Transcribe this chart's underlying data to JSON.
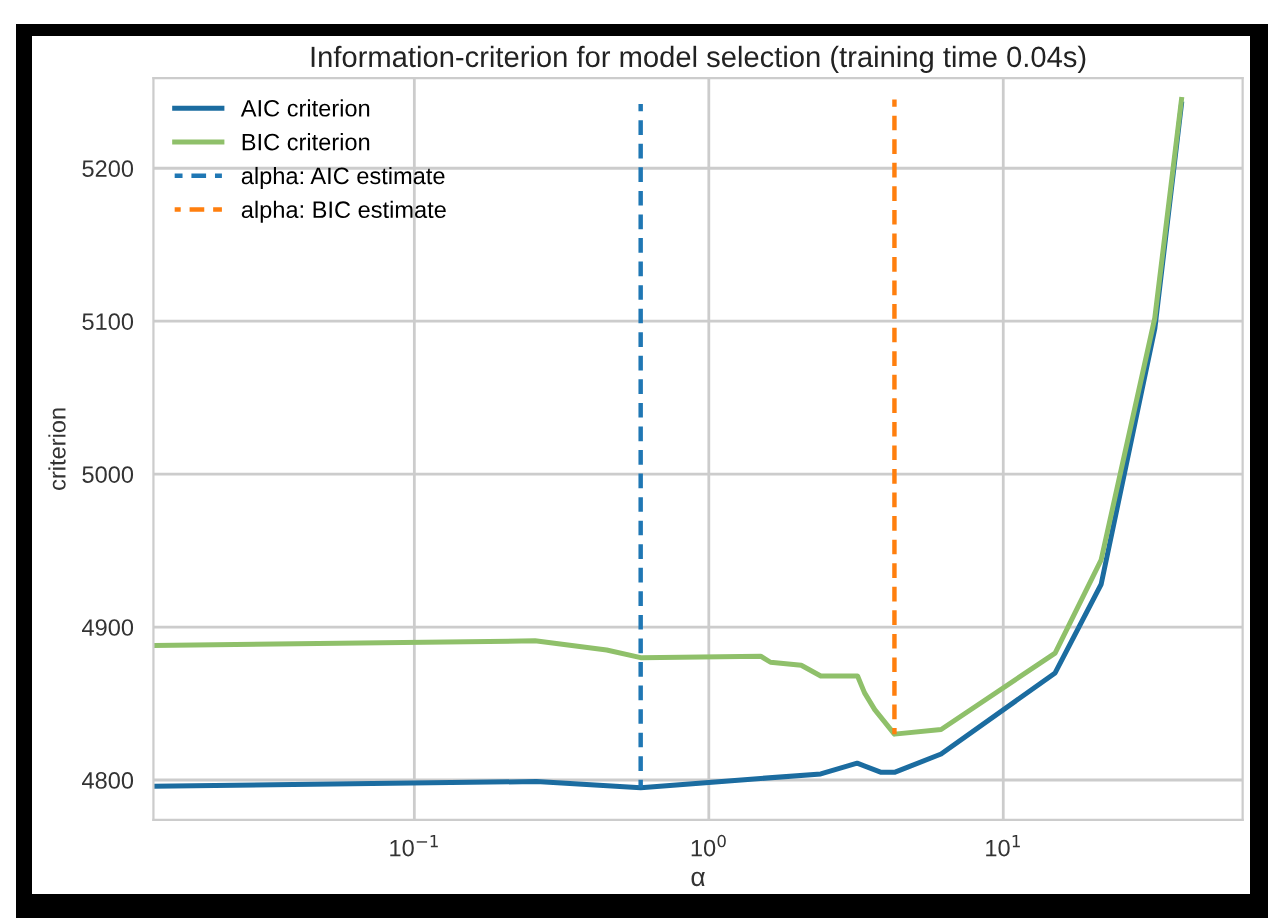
{
  "chart_data": {
    "type": "line",
    "title": "Information-criterion for model selection (training time 0.04s)",
    "xlabel": "α",
    "ylabel": "criterion",
    "log": "x",
    "grid": true,
    "legend": "top left",
    "marker": "none",
    "xlim": [
      0.013,
      65
    ],
    "ylim": [
      4774,
      5259
    ],
    "xticks": [
      {
        "value": 0.1,
        "label": "10$^{−1}$"
      },
      {
        "value": 1,
        "label": "10$^{0}$"
      },
      {
        "value": 10,
        "label": "10$^{1}$"
      }
    ],
    "yticks": [
      4800,
      4900,
      5000,
      5100,
      5200
    ],
    "series": [
      {
        "name": "AIC criterion",
        "color": "#1b6ca0",
        "line_style": "solid",
        "x": [
          0.013,
          0.26,
          0.587,
          1.5,
          2.4,
          3.19,
          3.85,
          4.27,
          6.15,
          15.0,
          21.5,
          32.7,
          40.3
        ],
        "values": [
          4796,
          4799,
          4795,
          4801,
          4804,
          4811,
          4805,
          4805,
          4817,
          4870,
          4928,
          5095,
          5242
        ]
      },
      {
        "name": "BIC criterion",
        "color": "#8fc06a",
        "line_style": "solid",
        "x": [
          0.013,
          0.257,
          0.45,
          0.587,
          1.5,
          1.62,
          2.06,
          2.4,
          3.2,
          3.38,
          3.66,
          4.27,
          6.15,
          15.0,
          21.5,
          32.7,
          40.3
        ],
        "values": [
          4888,
          4891,
          4885,
          4880,
          4881,
          4877,
          4875,
          4868,
          4868,
          4857,
          4846,
          4830,
          4833,
          4883,
          4944,
          5102,
          5245
        ]
      },
      {
        "name": "alpha: AIC estimate",
        "color": "#1f77b4",
        "line_style": "dashed",
        "x": [
          0.587,
          0.587
        ],
        "values": [
          4795,
          5242
        ]
      },
      {
        "name": "alpha: BIC estimate",
        "color": "#ff7f0e",
        "line_style": "dashed",
        "x": [
          4.27,
          4.27
        ],
        "values": [
          4830,
          5245
        ]
      }
    ]
  }
}
